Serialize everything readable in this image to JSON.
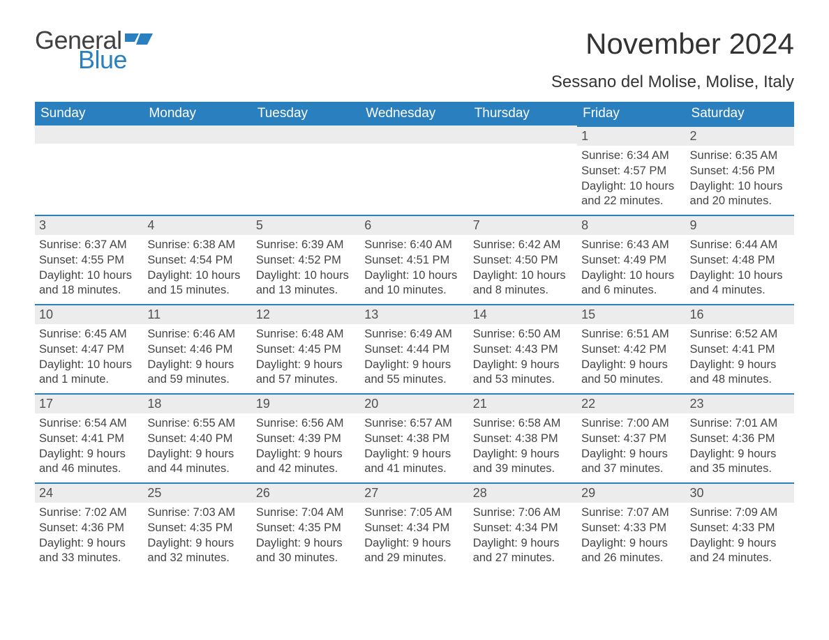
{
  "brand": {
    "text1": "General",
    "text2": "Blue",
    "flag_color": "#2a7fbf"
  },
  "title": "November 2024",
  "location": "Sessano del Molise, Molise, Italy",
  "colors": {
    "header_bg": "#2a7fbf",
    "header_text": "#ffffff",
    "daynum_bg": "#ececec",
    "daynum_border": "#2a7fbf",
    "body_text": "#444444",
    "page_bg": "#ffffff"
  },
  "days_of_week": [
    "Sunday",
    "Monday",
    "Tuesday",
    "Wednesday",
    "Thursday",
    "Friday",
    "Saturday"
  ],
  "weeks": [
    [
      null,
      null,
      null,
      null,
      null,
      {
        "n": "1",
        "sunrise": "Sunrise: 6:34 AM",
        "sunset": "Sunset: 4:57 PM",
        "daylight": "Daylight: 10 hours and 22 minutes."
      },
      {
        "n": "2",
        "sunrise": "Sunrise: 6:35 AM",
        "sunset": "Sunset: 4:56 PM",
        "daylight": "Daylight: 10 hours and 20 minutes."
      }
    ],
    [
      {
        "n": "3",
        "sunrise": "Sunrise: 6:37 AM",
        "sunset": "Sunset: 4:55 PM",
        "daylight": "Daylight: 10 hours and 18 minutes."
      },
      {
        "n": "4",
        "sunrise": "Sunrise: 6:38 AM",
        "sunset": "Sunset: 4:54 PM",
        "daylight": "Daylight: 10 hours and 15 minutes."
      },
      {
        "n": "5",
        "sunrise": "Sunrise: 6:39 AM",
        "sunset": "Sunset: 4:52 PM",
        "daylight": "Daylight: 10 hours and 13 minutes."
      },
      {
        "n": "6",
        "sunrise": "Sunrise: 6:40 AM",
        "sunset": "Sunset: 4:51 PM",
        "daylight": "Daylight: 10 hours and 10 minutes."
      },
      {
        "n": "7",
        "sunrise": "Sunrise: 6:42 AM",
        "sunset": "Sunset: 4:50 PM",
        "daylight": "Daylight: 10 hours and 8 minutes."
      },
      {
        "n": "8",
        "sunrise": "Sunrise: 6:43 AM",
        "sunset": "Sunset: 4:49 PM",
        "daylight": "Daylight: 10 hours and 6 minutes."
      },
      {
        "n": "9",
        "sunrise": "Sunrise: 6:44 AM",
        "sunset": "Sunset: 4:48 PM",
        "daylight": "Daylight: 10 hours and 4 minutes."
      }
    ],
    [
      {
        "n": "10",
        "sunrise": "Sunrise: 6:45 AM",
        "sunset": "Sunset: 4:47 PM",
        "daylight": "Daylight: 10 hours and 1 minute."
      },
      {
        "n": "11",
        "sunrise": "Sunrise: 6:46 AM",
        "sunset": "Sunset: 4:46 PM",
        "daylight": "Daylight: 9 hours and 59 minutes."
      },
      {
        "n": "12",
        "sunrise": "Sunrise: 6:48 AM",
        "sunset": "Sunset: 4:45 PM",
        "daylight": "Daylight: 9 hours and 57 minutes."
      },
      {
        "n": "13",
        "sunrise": "Sunrise: 6:49 AM",
        "sunset": "Sunset: 4:44 PM",
        "daylight": "Daylight: 9 hours and 55 minutes."
      },
      {
        "n": "14",
        "sunrise": "Sunrise: 6:50 AM",
        "sunset": "Sunset: 4:43 PM",
        "daylight": "Daylight: 9 hours and 53 minutes."
      },
      {
        "n": "15",
        "sunrise": "Sunrise: 6:51 AM",
        "sunset": "Sunset: 4:42 PM",
        "daylight": "Daylight: 9 hours and 50 minutes."
      },
      {
        "n": "16",
        "sunrise": "Sunrise: 6:52 AM",
        "sunset": "Sunset: 4:41 PM",
        "daylight": "Daylight: 9 hours and 48 minutes."
      }
    ],
    [
      {
        "n": "17",
        "sunrise": "Sunrise: 6:54 AM",
        "sunset": "Sunset: 4:41 PM",
        "daylight": "Daylight: 9 hours and 46 minutes."
      },
      {
        "n": "18",
        "sunrise": "Sunrise: 6:55 AM",
        "sunset": "Sunset: 4:40 PM",
        "daylight": "Daylight: 9 hours and 44 minutes."
      },
      {
        "n": "19",
        "sunrise": "Sunrise: 6:56 AM",
        "sunset": "Sunset: 4:39 PM",
        "daylight": "Daylight: 9 hours and 42 minutes."
      },
      {
        "n": "20",
        "sunrise": "Sunrise: 6:57 AM",
        "sunset": "Sunset: 4:38 PM",
        "daylight": "Daylight: 9 hours and 41 minutes."
      },
      {
        "n": "21",
        "sunrise": "Sunrise: 6:58 AM",
        "sunset": "Sunset: 4:38 PM",
        "daylight": "Daylight: 9 hours and 39 minutes."
      },
      {
        "n": "22",
        "sunrise": "Sunrise: 7:00 AM",
        "sunset": "Sunset: 4:37 PM",
        "daylight": "Daylight: 9 hours and 37 minutes."
      },
      {
        "n": "23",
        "sunrise": "Sunrise: 7:01 AM",
        "sunset": "Sunset: 4:36 PM",
        "daylight": "Daylight: 9 hours and 35 minutes."
      }
    ],
    [
      {
        "n": "24",
        "sunrise": "Sunrise: 7:02 AM",
        "sunset": "Sunset: 4:36 PM",
        "daylight": "Daylight: 9 hours and 33 minutes."
      },
      {
        "n": "25",
        "sunrise": "Sunrise: 7:03 AM",
        "sunset": "Sunset: 4:35 PM",
        "daylight": "Daylight: 9 hours and 32 minutes."
      },
      {
        "n": "26",
        "sunrise": "Sunrise: 7:04 AM",
        "sunset": "Sunset: 4:35 PM",
        "daylight": "Daylight: 9 hours and 30 minutes."
      },
      {
        "n": "27",
        "sunrise": "Sunrise: 7:05 AM",
        "sunset": "Sunset: 4:34 PM",
        "daylight": "Daylight: 9 hours and 29 minutes."
      },
      {
        "n": "28",
        "sunrise": "Sunrise: 7:06 AM",
        "sunset": "Sunset: 4:34 PM",
        "daylight": "Daylight: 9 hours and 27 minutes."
      },
      {
        "n": "29",
        "sunrise": "Sunrise: 7:07 AM",
        "sunset": "Sunset: 4:33 PM",
        "daylight": "Daylight: 9 hours and 26 minutes."
      },
      {
        "n": "30",
        "sunrise": "Sunrise: 7:09 AM",
        "sunset": "Sunset: 4:33 PM",
        "daylight": "Daylight: 9 hours and 24 minutes."
      }
    ]
  ]
}
